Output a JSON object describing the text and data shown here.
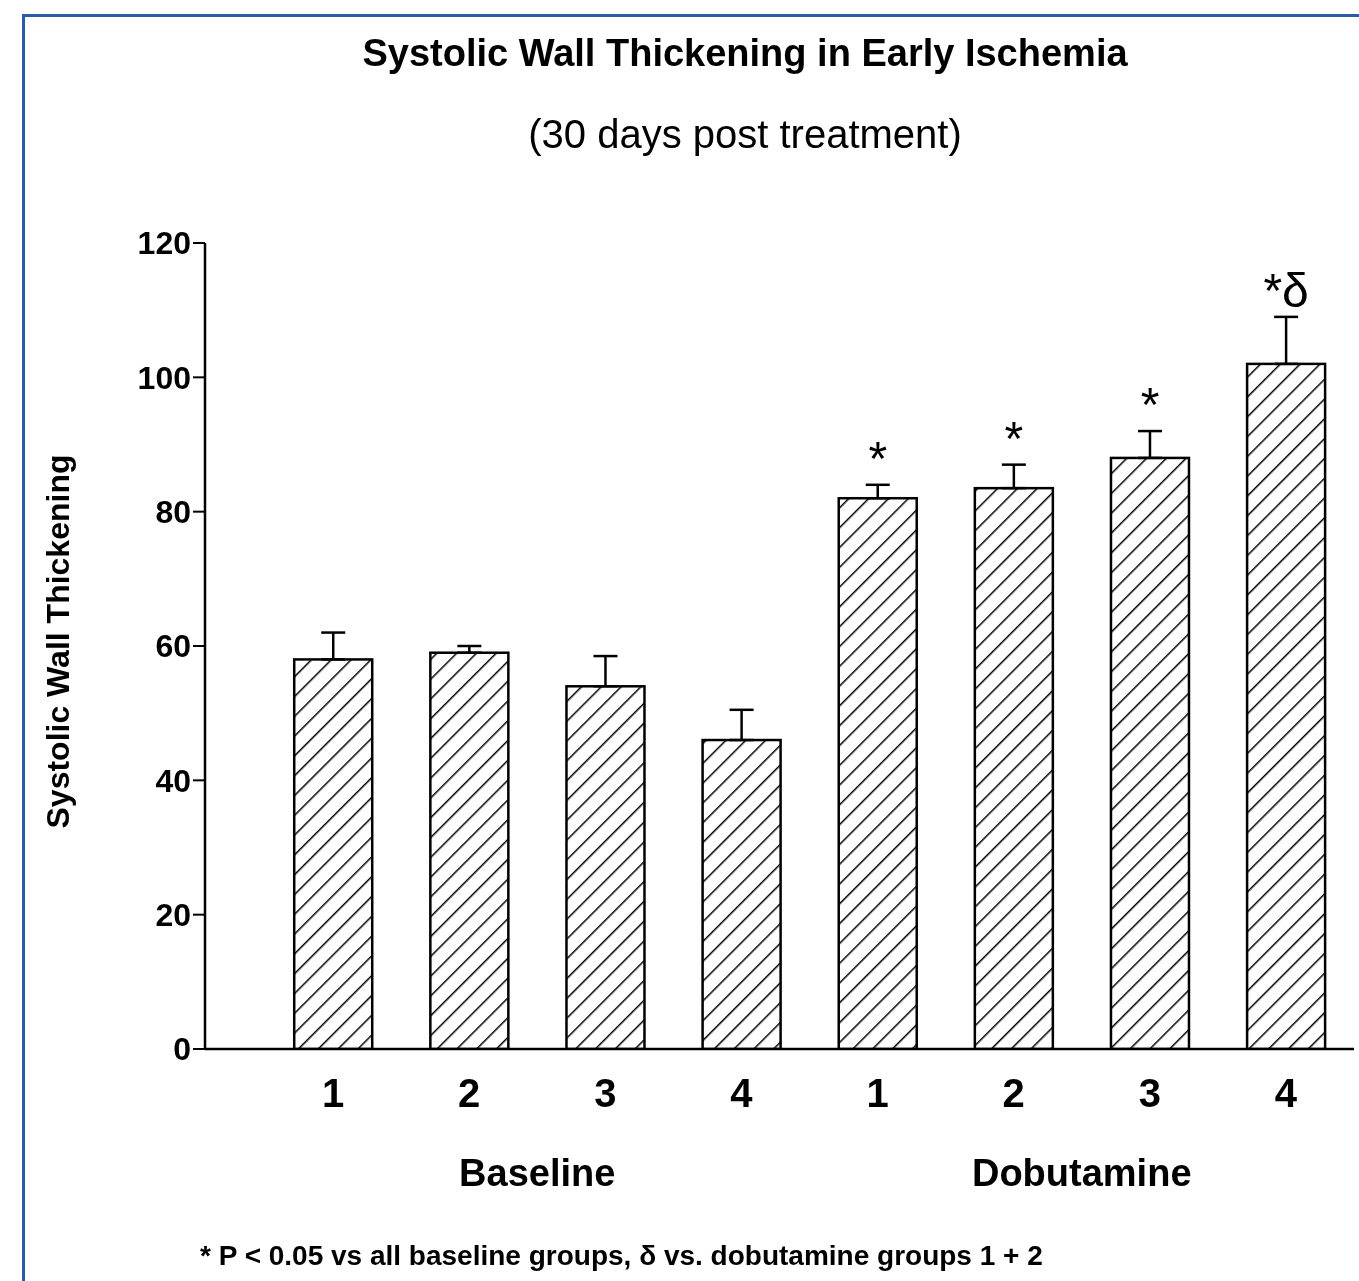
{
  "chart_data": {
    "type": "bar",
    "title": "Systolic Wall Thickening in Early Ischemia",
    "subtitle": "(30 days post treatment)",
    "ylabel": "Systolic Wall Thickening",
    "categories": [
      "1",
      "2",
      "3",
      "4",
      "1",
      "2",
      "3",
      "4"
    ],
    "values": [
      58,
      59,
      54,
      46,
      82,
      83.5,
      88,
      102
    ],
    "errors": [
      [
        58,
        62
      ],
      [
        59,
        60
      ],
      [
        54,
        58.5
      ],
      [
        46,
        50.5
      ],
      [
        82,
        84
      ],
      [
        83.5,
        87
      ],
      [
        88,
        92
      ],
      [
        102,
        109
      ]
    ],
    "value_labels": [
      null,
      null,
      null,
      null,
      "*",
      "*",
      "*",
      "*δ"
    ],
    "color": "#000000",
    "ylim": [
      0,
      120
    ],
    "yticks": [
      0,
      20,
      40,
      60,
      80,
      100,
      120
    ],
    "annotations": [
      "Baseline",
      "Dobutamine",
      "* P < 0.05 vs all baseline groups, δ vs. dobutamine groups 1 + 2"
    ]
  }
}
